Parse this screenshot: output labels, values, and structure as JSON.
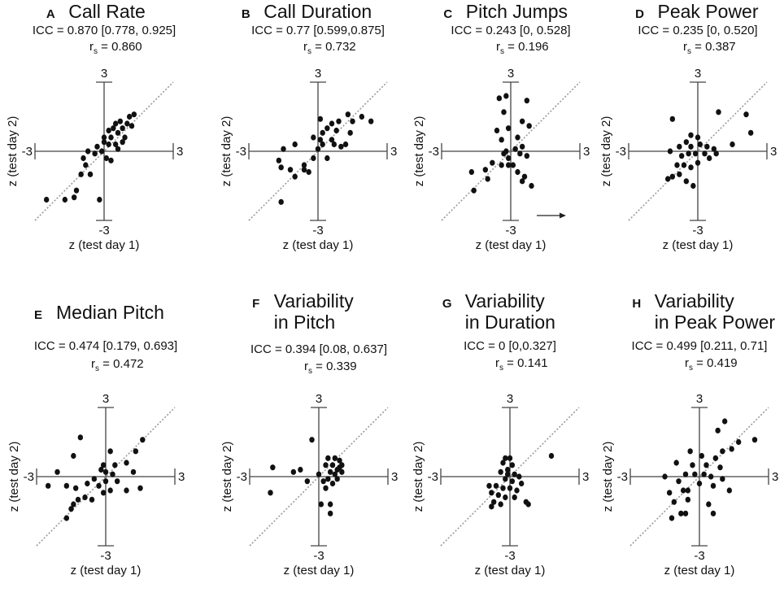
{
  "figure": {
    "axis_label_x": "z (test day 1)",
    "axis_label_y": "z (test day 2)"
  },
  "chart_data": [
    {
      "type": "scatter",
      "panel": "A",
      "title_lines": [
        "Call Rate"
      ],
      "icc": "ICC = 0.870 [0.778, 0.925]",
      "rs": "= 0.860",
      "xlim": [
        -3,
        3
      ],
      "ylim": [
        -3,
        3
      ],
      "tick_label_top": "3",
      "tick_label_bottom": "-3",
      "tick_label_left": "-3",
      "tick_label_right": "3",
      "identity_line": true,
      "points": [
        [
          -2.5,
          -2.1
        ],
        [
          -1.7,
          -2.1
        ],
        [
          -1.3,
          -2.0
        ],
        [
          -0.2,
          -2.1
        ],
        [
          -1.2,
          -1.7
        ],
        [
          -1.0,
          -1.0
        ],
        [
          -0.6,
          -1.0
        ],
        [
          -0.8,
          -0.6
        ],
        [
          -0.9,
          -0.3
        ],
        [
          -0.7,
          0.0
        ],
        [
          -0.4,
          -0.1
        ],
        [
          -0.1,
          0.0
        ],
        [
          0.0,
          0.4
        ],
        [
          0.2,
          0.3
        ],
        [
          0.1,
          -0.3
        ],
        [
          0.5,
          0.3
        ],
        [
          0.3,
          0.6
        ],
        [
          0.6,
          0.8
        ],
        [
          0.4,
          1.0
        ],
        [
          0.8,
          1.0
        ],
        [
          1.0,
          1.2
        ],
        [
          0.7,
          1.3
        ],
        [
          1.1,
          1.5
        ],
        [
          1.3,
          1.6
        ],
        [
          0.5,
          1.2
        ],
        [
          0.9,
          0.6
        ],
        [
          0.6,
          0.1
        ],
        [
          0.3,
          -0.4
        ],
        [
          0.0,
          0.6
        ],
        [
          1.2,
          1.1
        ],
        [
          0.2,
          0.9
        ],
        [
          -0.3,
          0.2
        ],
        [
          0.8,
          0.4
        ]
      ]
    },
    {
      "type": "scatter",
      "panel": "B",
      "title_lines": [
        "Call Duration"
      ],
      "icc": "ICC = 0.77 [0.599,0.875]",
      "rs": "= 0.732",
      "xlim": [
        -3,
        3
      ],
      "ylim": [
        -3,
        3
      ],
      "tick_label_top": "3",
      "tick_label_bottom": "-3",
      "tick_label_left": "-3",
      "tick_label_right": "3",
      "identity_line": true,
      "points": [
        [
          -1.6,
          -2.2
        ],
        [
          -1.0,
          -1.1
        ],
        [
          -1.2,
          -0.8
        ],
        [
          -1.6,
          -0.7
        ],
        [
          -1.7,
          -0.4
        ],
        [
          -1.5,
          0.1
        ],
        [
          -1.0,
          0.3
        ],
        [
          -0.6,
          -0.6
        ],
        [
          -0.4,
          -0.9
        ],
        [
          -0.6,
          -0.8
        ],
        [
          -0.2,
          -0.3
        ],
        [
          0.0,
          0.1
        ],
        [
          0.1,
          0.5
        ],
        [
          0.2,
          0.8
        ],
        [
          0.4,
          1.0
        ],
        [
          0.1,
          1.4
        ],
        [
          0.6,
          0.5
        ],
        [
          0.7,
          0.3
        ],
        [
          1.0,
          0.2
        ],
        [
          1.2,
          0.3
        ],
        [
          0.8,
          0.9
        ],
        [
          1.3,
          1.6
        ],
        [
          1.5,
          1.3
        ],
        [
          1.9,
          1.5
        ],
        [
          2.3,
          1.3
        ],
        [
          1.4,
          0.8
        ],
        [
          0.9,
          1.3
        ],
        [
          0.6,
          1.2
        ],
        [
          0.2,
          0.3
        ],
        [
          -0.2,
          0.6
        ],
        [
          0.4,
          -0.3
        ]
      ]
    },
    {
      "type": "scatter",
      "panel": "C",
      "title_lines": [
        "Pitch Jumps"
      ],
      "icc": "ICC = 0.243 [0, 0.528]",
      "rs": "= 0.196",
      "xlim": [
        -3,
        3
      ],
      "ylim": [
        -3,
        3
      ],
      "tick_label_top": "3",
      "tick_label_bottom": "-3",
      "tick_label_left": "-3",
      "tick_label_right": "3",
      "identity_line": true,
      "arrow": true,
      "points": [
        [
          -0.2,
          2.4
        ],
        [
          -0.5,
          2.3
        ],
        [
          0.7,
          2.2
        ],
        [
          -0.3,
          1.7
        ],
        [
          0.5,
          1.3
        ],
        [
          -0.1,
          1.0
        ],
        [
          -0.6,
          0.9
        ],
        [
          0.8,
          1.1
        ],
        [
          -0.4,
          0.5
        ],
        [
          0.3,
          0.6
        ],
        [
          0.2,
          0.1
        ],
        [
          0.5,
          0.2
        ],
        [
          -0.1,
          -0.3
        ],
        [
          -0.4,
          -0.6
        ],
        [
          -0.1,
          -0.6
        ],
        [
          0.1,
          -0.6
        ],
        [
          -0.8,
          -0.5
        ],
        [
          -1.1,
          -0.8
        ],
        [
          -1.7,
          -0.9
        ],
        [
          -1.0,
          -1.2
        ],
        [
          -1.6,
          -1.7
        ],
        [
          0.3,
          -0.9
        ],
        [
          0.6,
          -1.1
        ],
        [
          0.5,
          -1.3
        ],
        [
          0.9,
          -1.5
        ],
        [
          -0.2,
          0.0
        ],
        [
          0.7,
          -0.2
        ],
        [
          0.4,
          -0.1
        ],
        [
          -0.3,
          -0.1
        ]
      ]
    },
    {
      "type": "scatter",
      "panel": "D",
      "title_lines": [
        "Peak Power"
      ],
      "icc": "ICC = 0.235 [0, 0.520]",
      "rs": "= 0.387",
      "xlim": [
        -3,
        3
      ],
      "ylim": [
        -3,
        3
      ],
      "tick_label_top": "3",
      "tick_label_bottom": "-3",
      "tick_label_left": "-3",
      "tick_label_right": "3",
      "identity_line": true,
      "points": [
        [
          -1.1,
          1.4
        ],
        [
          0.9,
          1.7
        ],
        [
          2.1,
          1.6
        ],
        [
          2.3,
          0.8
        ],
        [
          1.5,
          0.3
        ],
        [
          -0.3,
          0.7
        ],
        [
          0.0,
          0.6
        ],
        [
          -0.5,
          0.4
        ],
        [
          -0.8,
          0.2
        ],
        [
          -0.3,
          0.2
        ],
        [
          0.1,
          0.3
        ],
        [
          0.4,
          0.2
        ],
        [
          0.7,
          0.1
        ],
        [
          0.8,
          -0.1
        ],
        [
          0.3,
          -0.1
        ],
        [
          -0.1,
          -0.1
        ],
        [
          -0.4,
          -0.1
        ],
        [
          -0.7,
          -0.2
        ],
        [
          -1.2,
          0.0
        ],
        [
          -0.9,
          -0.6
        ],
        [
          -0.6,
          -0.6
        ],
        [
          -0.3,
          -0.7
        ],
        [
          -0.8,
          -1.0
        ],
        [
          -1.1,
          -1.1
        ],
        [
          -1.3,
          -1.2
        ],
        [
          -0.5,
          -1.3
        ],
        [
          -0.2,
          -1.5
        ],
        [
          0.0,
          -0.5
        ],
        [
          0.5,
          -0.3
        ]
      ]
    },
    {
      "type": "scatter",
      "panel": "E",
      "title_lines": [
        "Median Pitch"
      ],
      "icc": "ICC = 0.474 [0.179, 0.693]",
      "rs": "= 0.472",
      "xlim": [
        -3,
        3
      ],
      "ylim": [
        -3,
        3
      ],
      "tick_label_top": "3",
      "tick_label_bottom": "-3",
      "tick_label_left": "-3",
      "tick_label_right": "3",
      "identity_line": true,
      "points": [
        [
          -1.1,
          1.7
        ],
        [
          -1.4,
          0.9
        ],
        [
          1.6,
          1.6
        ],
        [
          1.3,
          1.1
        ],
        [
          0.2,
          1.1
        ],
        [
          -0.1,
          0.5
        ],
        [
          0.4,
          0.5
        ],
        [
          0.9,
          0.6
        ],
        [
          1.2,
          0.2
        ],
        [
          0.3,
          0.1
        ],
        [
          0.0,
          0.2
        ],
        [
          -0.2,
          0.3
        ],
        [
          -2.1,
          0.2
        ],
        [
          -2.5,
          -0.4
        ],
        [
          -1.7,
          -0.4
        ],
        [
          -1.3,
          -0.5
        ],
        [
          -0.8,
          -0.3
        ],
        [
          -0.5,
          -0.1
        ],
        [
          -0.3,
          -0.4
        ],
        [
          0.0,
          -0.2
        ],
        [
          0.5,
          -0.2
        ],
        [
          0.9,
          -0.6
        ],
        [
          1.5,
          -0.5
        ],
        [
          -0.9,
          -0.9
        ],
        [
          -1.2,
          -1.0
        ],
        [
          -1.4,
          -1.2
        ],
        [
          -1.5,
          -1.4
        ],
        [
          -1.7,
          -1.8
        ],
        [
          -0.6,
          -1.0
        ],
        [
          0.2,
          -0.6
        ],
        [
          -0.1,
          -0.7
        ]
      ]
    },
    {
      "type": "scatter",
      "panel": "F",
      "title_lines": [
        "Variability",
        "in Pitch"
      ],
      "icc": "ICC = 0.394 [0.08, 0.637]",
      "rs": "= 0.339",
      "xlim": [
        -3,
        3
      ],
      "ylim": [
        -3,
        3
      ],
      "tick_label_top": "3",
      "tick_label_bottom": "-3",
      "tick_label_left": "-3",
      "tick_label_right": "3",
      "identity_line": true,
      "points": [
        [
          -0.3,
          1.6
        ],
        [
          0.4,
          0.8
        ],
        [
          0.7,
          0.8
        ],
        [
          0.9,
          0.7
        ],
        [
          0.6,
          0.5
        ],
        [
          0.9,
          0.4
        ],
        [
          1.0,
          0.2
        ],
        [
          0.5,
          0.2
        ],
        [
          0.7,
          0.1
        ],
        [
          0.4,
          -0.1
        ],
        [
          0.8,
          -0.1
        ],
        [
          0.2,
          -0.2
        ],
        [
          0.0,
          0.1
        ],
        [
          -0.8,
          0.3
        ],
        [
          -1.1,
          0.2
        ],
        [
          -0.5,
          -0.2
        ],
        [
          -2.0,
          0.4
        ],
        [
          -2.1,
          -0.7
        ],
        [
          0.1,
          -1.2
        ],
        [
          0.5,
          -1.2
        ],
        [
          0.5,
          -1.6
        ],
        [
          0.3,
          -0.5
        ],
        [
          0.6,
          -0.3
        ],
        [
          0.3,
          0.5
        ],
        [
          0.8,
          0.3
        ],
        [
          1.0,
          0.5
        ]
      ]
    },
    {
      "type": "scatter",
      "panel": "G",
      "title_lines": [
        "Variability",
        "in Duration"
      ],
      "icc": "ICC = 0 [0,0.327]",
      "rs": "= 0.141",
      "xlim": [
        -3,
        3
      ],
      "ylim": [
        -3,
        3
      ],
      "tick_label_top": "3",
      "tick_label_bottom": "-3",
      "tick_label_left": "-3",
      "tick_label_right": "3",
      "identity_line": true,
      "points": [
        [
          1.8,
          0.9
        ],
        [
          -0.2,
          0.8
        ],
        [
          0.0,
          0.8
        ],
        [
          -0.3,
          0.6
        ],
        [
          0.1,
          0.5
        ],
        [
          -0.1,
          0.3
        ],
        [
          0.2,
          0.1
        ],
        [
          -0.4,
          0.2
        ],
        [
          -0.2,
          -0.1
        ],
        [
          0.1,
          -0.2
        ],
        [
          0.4,
          0.0
        ],
        [
          0.5,
          -0.3
        ],
        [
          -0.6,
          -0.4
        ],
        [
          -0.3,
          -0.5
        ],
        [
          0.0,
          -0.5
        ],
        [
          0.3,
          -0.6
        ],
        [
          -0.8,
          -0.7
        ],
        [
          -0.5,
          -0.8
        ],
        [
          -0.2,
          -0.9
        ],
        [
          0.2,
          -0.9
        ],
        [
          -0.7,
          -1.1
        ],
        [
          -0.4,
          -1.2
        ],
        [
          -0.8,
          -1.3
        ],
        [
          0.7,
          -1.1
        ],
        [
          0.8,
          -1.2
        ],
        [
          -0.9,
          -0.4
        ],
        [
          -0.1,
          0.1
        ]
      ]
    },
    {
      "type": "scatter",
      "panel": "H",
      "title_lines": [
        "Variability",
        "in Peak Power"
      ],
      "icc": "ICC = 0.499 [0.211, 0.71]",
      "rs": "= 0.419",
      "xlim": [
        -3,
        3
      ],
      "ylim": [
        -3,
        3
      ],
      "tick_label_top": "3",
      "tick_label_bottom": "-3",
      "tick_label_left": "-3",
      "tick_label_right": "3",
      "identity_line": true,
      "points": [
        [
          1.1,
          2.4
        ],
        [
          0.8,
          2.0
        ],
        [
          2.4,
          1.6
        ],
        [
          1.7,
          1.5
        ],
        [
          1.4,
          1.2
        ],
        [
          -0.4,
          1.1
        ],
        [
          0.1,
          0.9
        ],
        [
          0.7,
          0.8
        ],
        [
          1.0,
          1.1
        ],
        [
          -1.0,
          0.6
        ],
        [
          -0.3,
          0.5
        ],
        [
          0.3,
          0.5
        ],
        [
          0.9,
          0.4
        ],
        [
          -0.6,
          0.1
        ],
        [
          -0.2,
          0.1
        ],
        [
          0.2,
          0.1
        ],
        [
          0.5,
          0.0
        ],
        [
          1.0,
          -0.1
        ],
        [
          -1.5,
          0.0
        ],
        [
          -0.9,
          -0.2
        ],
        [
          -0.5,
          -0.6
        ],
        [
          0.0,
          -0.3
        ],
        [
          0.6,
          -0.4
        ],
        [
          1.3,
          -0.6
        ],
        [
          -1.1,
          -1.1
        ],
        [
          -0.5,
          -1.0
        ],
        [
          0.4,
          -1.2
        ],
        [
          -0.6,
          -1.6
        ],
        [
          -0.8,
          -1.6
        ],
        [
          -1.2,
          -1.8
        ],
        [
          0.6,
          -1.6
        ],
        [
          -0.7,
          -0.6
        ],
        [
          -1.3,
          -0.7
        ]
      ]
    }
  ]
}
